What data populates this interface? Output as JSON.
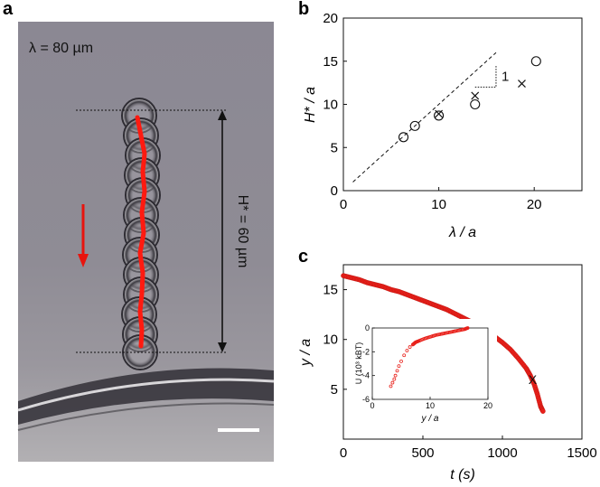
{
  "figure": {
    "panel_a": {
      "letter": "a",
      "lambda_label": "λ = 80 µm",
      "height_label": "H* = 60 µm"
    },
    "panel_b": {
      "letter": "b",
      "slope_label": "1"
    },
    "panel_c": {
      "letter": "c"
    }
  },
  "chart_data": [
    {
      "type": "scatter",
      "panel": "b",
      "xlabel": "λ / a",
      "ylabel": "H* / a",
      "xlim": [
        0,
        25
      ],
      "ylim": [
        0,
        20
      ],
      "xticks": [
        0,
        10,
        20
      ],
      "yticks": [
        0,
        5,
        10,
        15,
        20
      ],
      "grid": false,
      "series": [
        {
          "marker": "circle",
          "x": [
            6.3,
            7.5,
            10.0,
            13.8,
            20.2
          ],
          "y": [
            6.2,
            7.5,
            8.7,
            10.0,
            15.0
          ]
        },
        {
          "marker": "cross",
          "x": [
            10.0,
            13.8,
            18.7
          ],
          "y": [
            8.9,
            11.0,
            12.4
          ]
        }
      ],
      "reference_line": {
        "style": "dashed",
        "x": [
          1,
          16
        ],
        "y": [
          1,
          16
        ]
      },
      "slope_triangle": {
        "x": [
          13.8,
          16.0
        ],
        "y": [
          12.0,
          14.5
        ],
        "label": "1"
      }
    },
    {
      "type": "scatter",
      "panel": "c",
      "xlabel": "t (s)",
      "ylabel": "y / a",
      "xlim": [
        0,
        1500
      ],
      "ylim": [
        0,
        17.5
      ],
      "xticks": [
        0,
        500,
        1000,
        1500
      ],
      "yticks": [
        5,
        10,
        15
      ],
      "grid": false,
      "color": "#e8201a",
      "marker_point": {
        "x": 1190,
        "y": 6.0,
        "label": "X"
      },
      "series": [
        {
          "x": [
            0,
            50,
            100,
            150,
            200,
            250,
            300,
            350,
            400,
            450,
            500,
            550,
            600,
            650,
            700,
            750,
            800,
            850,
            900,
            950,
            1000,
            1050,
            1100,
            1150,
            1175,
            1200,
            1220,
            1240,
            1255
          ],
          "y": [
            16.4,
            16.2,
            16.0,
            15.7,
            15.5,
            15.3,
            15.0,
            14.8,
            14.5,
            14.2,
            13.9,
            13.6,
            13.3,
            13.0,
            12.6,
            12.2,
            11.8,
            11.4,
            10.9,
            10.3,
            9.7,
            9.0,
            8.1,
            7.1,
            6.4,
            5.5,
            4.5,
            3.3,
            2.8
          ]
        }
      ],
      "inset": {
        "type": "scatter",
        "xlabel": "y / a",
        "ylabel": "U (10³ kBT)",
        "xlim": [
          0,
          20
        ],
        "ylim": [
          -6,
          0
        ],
        "xticks": [
          0,
          10,
          20
        ],
        "yticks": [
          -6,
          -4,
          -2,
          0
        ],
        "series": [
          {
            "x": [
              3.2,
              3.5,
              3.8,
              4.0,
              4.3,
              4.6,
              5.0,
              5.5,
              6.0,
              6.5,
              7.0,
              7.5,
              8.0,
              9.0,
              10.0,
              11.0,
              12.0,
              13.0,
              14.0,
              15.0,
              16.0,
              16.5
            ],
            "y": [
              -4.9,
              -4.6,
              -4.3,
              -4.0,
              -3.6,
              -3.2,
              -2.8,
              -2.3,
              -1.9,
              -1.6,
              -1.4,
              -1.2,
              -1.1,
              -0.9,
              -0.75,
              -0.6,
              -0.5,
              -0.4,
              -0.3,
              -0.2,
              -0.1,
              0
            ]
          }
        ]
      }
    }
  ]
}
